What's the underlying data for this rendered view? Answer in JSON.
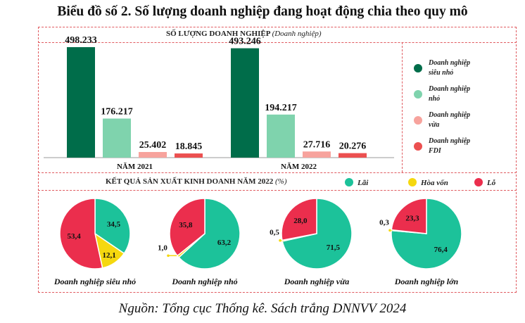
{
  "title": "Biểu đồ số 2. Số lượng doanh nghiệp đang hoạt động chia theo quy mô",
  "source": "Nguồn: Tổng cục Thống kê. Sách trắng DNNVV 2024",
  "colors": {
    "sieu_nho": "#006d4a",
    "nho": "#7fd3ad",
    "vua": "#f7a39d",
    "fdi": "#ec5050",
    "lai": "#1cc29a",
    "hoa_von": "#f5d80f",
    "lo": "#eb2e4d",
    "border": "#e05a5f"
  },
  "chart_data": [
    {
      "type": "bar",
      "title": "SỐ LƯỢNG DOANH NGHIỆP",
      "title_unit": "(Doanh nghiệp)",
      "categories": [
        "NĂM 2021",
        "NĂM 2022"
      ],
      "series": [
        {
          "name": "Doanh nghiệp siêu nhỏ",
          "values": [
            498233,
            493246
          ],
          "labels": [
            "498.233",
            "493.246"
          ]
        },
        {
          "name": "Doanh nghiệp nhỏ",
          "values": [
            176217,
            194217
          ],
          "labels": [
            "176.217",
            "194.217"
          ]
        },
        {
          "name": "Doanh nghiệp vừa",
          "values": [
            25402,
            27716
          ],
          "labels": [
            "25.402",
            "27.716"
          ]
        },
        {
          "name": "Doanh nghiệp FDI",
          "values": [
            18845,
            20276
          ],
          "labels": [
            "18.845",
            "20.276"
          ]
        }
      ],
      "ylim": [
        0,
        520000
      ],
      "legend_position": "right"
    },
    {
      "type": "pie",
      "title": "KẾT QUẢ SẢN XUẤT KINH DOANH NĂM 2022",
      "title_unit": "(%)",
      "legend": [
        "Lãi",
        "Hòa vốn",
        "Lỗ"
      ],
      "legend_position": "top-right",
      "pies": [
        {
          "name": "Doanh nghiệp siêu nhỏ",
          "values": [
            34.5,
            12.1,
            53.4
          ],
          "labels": [
            "34,5",
            "12,1",
            "53,4"
          ]
        },
        {
          "name": "Doanh nghiệp nhỏ",
          "values": [
            63.2,
            1.0,
            35.8
          ],
          "labels": [
            "63,2",
            "1,0",
            "35,8"
          ]
        },
        {
          "name": "Doanh nghiệp vừa",
          "values": [
            71.5,
            0.5,
            28.0
          ],
          "labels": [
            "71,5",
            "0,5",
            "28,0"
          ]
        },
        {
          "name": "Doanh nghiệp lớn",
          "values": [
            76.4,
            0.3,
            23.3
          ],
          "labels": [
            "76,4",
            "0,3",
            "23,3"
          ]
        }
      ]
    }
  ]
}
